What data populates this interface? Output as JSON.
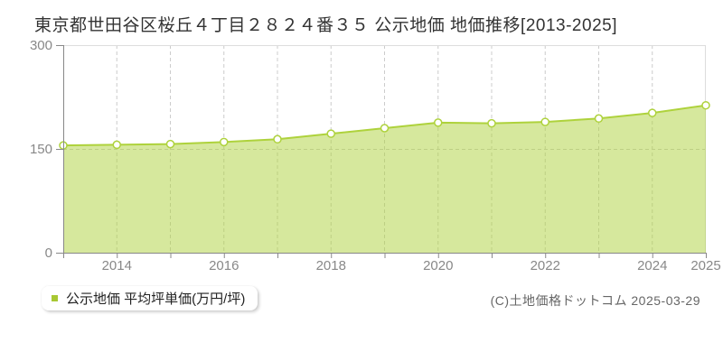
{
  "chart_data": {
    "type": "area",
    "title": "東京都世田谷区桜丘４丁目２８２４番３５ 公示地価 地価推移[2013-2025]",
    "x": [
      2013,
      2014,
      2015,
      2016,
      2017,
      2018,
      2019,
      2020,
      2021,
      2022,
      2023,
      2024,
      2025
    ],
    "series": [
      {
        "name": "公示地価 平均坪単価(万円/坪)",
        "values": [
          155,
          156,
          157,
          160,
          164,
          172,
          180,
          188,
          187,
          189,
          194,
          202,
          213
        ]
      }
    ],
    "xlabel": "",
    "ylabel": "",
    "ylim": [
      0,
      300
    ],
    "yticks": [
      0,
      150,
      300
    ],
    "xticks_labeled": [
      2014,
      2016,
      2018,
      2020,
      2022,
      2024,
      2025
    ],
    "grid": {
      "vertical": "dashed line at every year",
      "horizontal": [
        150
      ]
    },
    "legend_position": "bottom-left",
    "colors": {
      "line": "#aed23c",
      "fill": "#aed23c",
      "fill_opacity": 0.5,
      "marker_fill": "#ffffff",
      "grid": "#cccccc",
      "axis": "#888888",
      "tick_label": "#888888",
      "plot_border": "#dddddd",
      "legend_bullet": "#a8c832"
    }
  },
  "legend": {
    "label": "公示地価 平均坪単価(万円/坪)"
  },
  "footer": {
    "copyright": "(C)土地価格ドットコム 2025-03-29"
  }
}
